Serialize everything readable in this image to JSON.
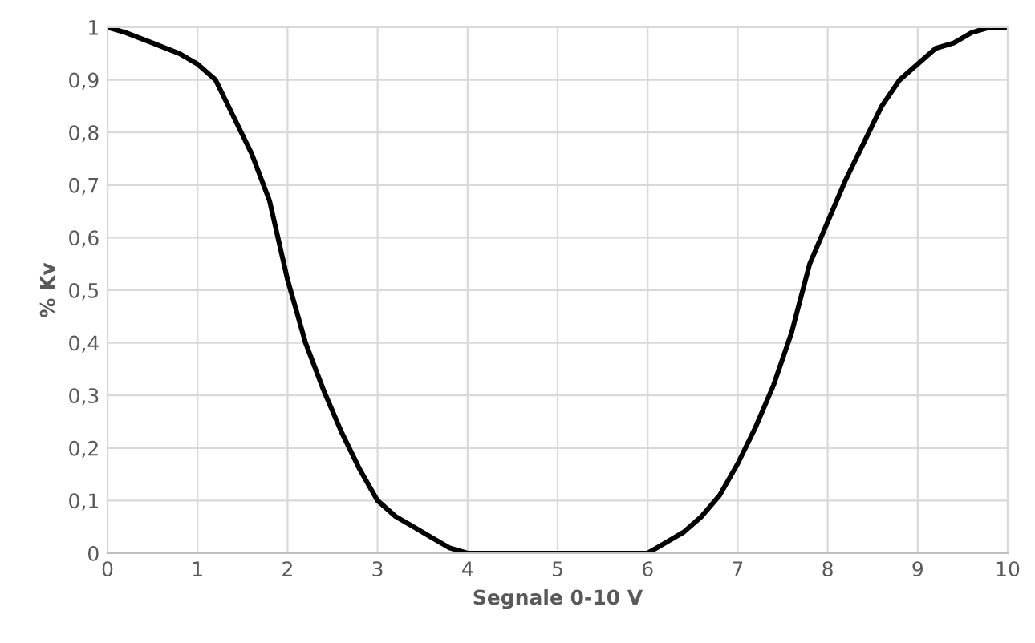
{
  "chart_data": {
    "type": "line",
    "xlabel": "Segnale 0-10 V",
    "ylabel": "% Kv",
    "x": [
      0,
      0.2,
      0.5,
      0.8,
      1.0,
      1.2,
      1.4,
      1.6,
      1.8,
      2.0,
      2.2,
      2.4,
      2.6,
      2.8,
      3.0,
      3.2,
      3.4,
      3.6,
      3.8,
      4.0,
      6.0,
      6.2,
      6.4,
      6.6,
      6.8,
      7.0,
      7.2,
      7.4,
      7.6,
      7.8,
      8.0,
      8.2,
      8.4,
      8.6,
      8.8,
      9.0,
      9.2,
      9.4,
      9.6,
      9.8,
      10
    ],
    "series": [
      {
        "color": "#000000",
        "values": [
          1.0,
          0.99,
          0.97,
          0.95,
          0.93,
          0.9,
          0.83,
          0.76,
          0.67,
          0.52,
          0.4,
          0.31,
          0.23,
          0.16,
          0.1,
          0.07,
          0.05,
          0.03,
          0.01,
          0.0,
          0.0,
          0.02,
          0.04,
          0.07,
          0.11,
          0.17,
          0.24,
          0.32,
          0.42,
          0.55,
          0.63,
          0.71,
          0.78,
          0.85,
          0.9,
          0.93,
          0.96,
          0.97,
          0.99,
          1.0,
          1.0
        ]
      }
    ],
    "xlim": [
      0,
      10
    ],
    "xticks": [
      0,
      1,
      2,
      3,
      4,
      5,
      6,
      7,
      8,
      9,
      10
    ],
    "ylim": [
      0,
      1
    ],
    "yticks": [
      0,
      {
        "value": 0.1,
        "label": "0,1"
      },
      {
        "value": 0.2,
        "label": "0,2"
      },
      {
        "value": 0.3,
        "label": "0,3"
      },
      {
        "value": 0.4,
        "label": "0,4"
      },
      {
        "value": 0.5,
        "label": "0,5"
      },
      {
        "value": 0.6,
        "label": "0,6"
      },
      {
        "value": 0.7,
        "label": "0,7"
      },
      {
        "value": 0.8,
        "label": "0,8"
      },
      {
        "value": 0.9,
        "label": "0,9"
      },
      1
    ],
    "grid": true,
    "marker": "none",
    "line_style": "solid"
  }
}
